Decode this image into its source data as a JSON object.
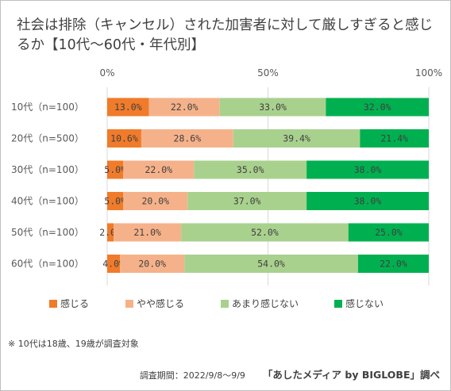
{
  "title": "社会は排除（キャンセル）された加害者に対して厳しすぎると感じるか【10代～60代・年代別】",
  "note": "※ 10代は18歳、19歳が調査対象",
  "period": "調査期間：2022/9/8～9/9",
  "source": "「あしたメディア by BIGLOBE」調べ",
  "colors": [
    "#f07b2a",
    "#f5b28a",
    "#a9d18e",
    "#00b050"
  ],
  "chart_data": {
    "type": "bar",
    "orientation": "horizontal",
    "stacked": true,
    "percent_stacked": true,
    "categories": [
      "10代（n=100）",
      "20代（n=500）",
      "30代（n=100）",
      "40代（n=100）",
      "50代（n=100）",
      "60代（n=100）"
    ],
    "series": [
      {
        "name": "感じる",
        "values": [
          13.0,
          10.6,
          5.0,
          5.0,
          2.0,
          4.0
        ]
      },
      {
        "name": "やや感じる",
        "values": [
          22.0,
          28.6,
          22.0,
          20.0,
          21.0,
          20.0
        ]
      },
      {
        "name": "あまり感じない",
        "values": [
          33.0,
          39.4,
          35.0,
          37.0,
          52.0,
          54.0
        ]
      },
      {
        "name": "感じない",
        "values": [
          32.0,
          21.4,
          38.0,
          38.0,
          25.0,
          22.0
        ]
      }
    ],
    "xticks": [
      "0%",
      "50%",
      "100%"
    ],
    "xlim": [
      0,
      100
    ],
    "legend_position": "bottom"
  }
}
